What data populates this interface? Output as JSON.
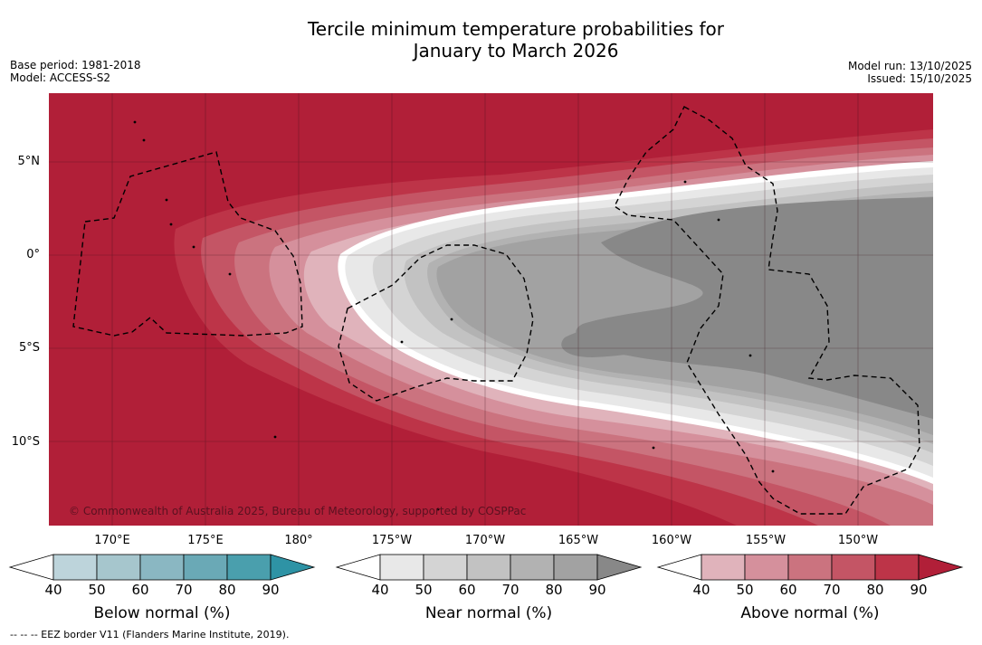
{
  "header": {
    "title_line1": "Tercile minimum temperature probabilities for",
    "title_line2": "January to March 2026",
    "base_period": "Base period: 1981-2018",
    "model": "Model: ACCESS-S2",
    "model_run": "Model run: 13/10/2025",
    "issued": "Issued: 15/10/2025"
  },
  "map": {
    "lat_labels": [
      "5°N",
      "0°",
      "5°S",
      "10°S"
    ],
    "lon_labels": [
      "170°E",
      "175°E",
      "180°",
      "175°W",
      "170°W",
      "165°W",
      "160°W",
      "155°W",
      "150°W"
    ],
    "copyright": "© Commonwealth of Australia 2025, Bureau of Meteorology, supported by COSPPac"
  },
  "colorbars": {
    "below": {
      "title": "Below normal (%)",
      "ticks": [
        "40",
        "50",
        "60",
        "70",
        "80",
        "90"
      ],
      "colors": [
        "#bdd4db",
        "#a6c6cd",
        "#8ab7c2",
        "#6aa9b6",
        "#4a9fad",
        "#2e93a5"
      ]
    },
    "near": {
      "title": "Near normal (%)",
      "ticks": [
        "40",
        "50",
        "60",
        "70",
        "80",
        "90"
      ],
      "colors": [
        "#e8e8e8",
        "#d4d4d4",
        "#c2c2c2",
        "#b2b2b2",
        "#a2a2a2",
        "#888888"
      ]
    },
    "above": {
      "title": "Above normal (%)",
      "ticks": [
        "40",
        "50",
        "60",
        "70",
        "80",
        "90"
      ],
      "colors": [
        "#e0b3bb",
        "#d5909c",
        "#cb737f",
        "#c45565",
        "#bd3448",
        "#b11f38"
      ]
    }
  },
  "footnote": "-- -- -- EEZ border V11 (Flanders Marine Institute, 2019)."
}
